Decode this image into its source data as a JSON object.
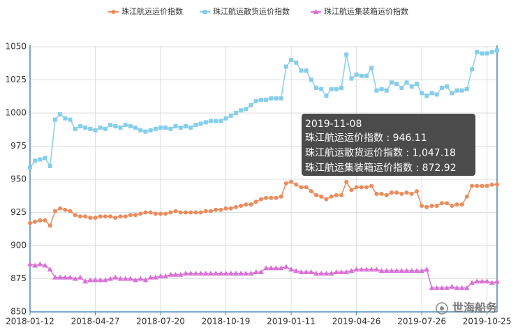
{
  "chart_data": {
    "type": "line",
    "categories": [
      "2018-01-12",
      null,
      null,
      null,
      null,
      null,
      null,
      null,
      null,
      null,
      null,
      null,
      null,
      "2018-04-27",
      null,
      null,
      null,
      null,
      null,
      null,
      null,
      null,
      null,
      null,
      null,
      null,
      "2018-07-20",
      null,
      null,
      null,
      null,
      null,
      null,
      null,
      null,
      null,
      null,
      null,
      null,
      "2018-10-19",
      null,
      null,
      null,
      null,
      null,
      null,
      null,
      null,
      null,
      null,
      null,
      null,
      "2019-01-11",
      null,
      null,
      null,
      null,
      null,
      null,
      null,
      null,
      null,
      null,
      null,
      null,
      "2019-04-26",
      null,
      null,
      null,
      null,
      null,
      null,
      null,
      null,
      null,
      null,
      null,
      null,
      "2019-07-26",
      null,
      null,
      null,
      null,
      null,
      null,
      null,
      null,
      null,
      null,
      null,
      null,
      "2019-10-25",
      null,
      "2019-11-08"
    ],
    "series": [
      {
        "name": "珠江航运运价指数",
        "color": "#ee8a5c",
        "marker": "circle",
        "values": [
          917,
          918,
          919,
          919,
          915,
          926,
          928,
          927,
          926,
          923,
          922,
          922,
          921,
          921,
          922,
          922,
          922,
          921,
          922,
          922,
          923,
          923,
          924,
          925,
          925,
          924,
          924,
          924,
          925,
          926,
          925,
          925,
          925,
          925,
          925,
          926,
          926,
          927,
          927,
          928,
          928,
          929,
          930,
          931,
          931,
          933,
          935,
          936,
          936,
          936,
          937,
          947,
          948,
          946,
          944,
          944,
          941,
          938,
          937,
          935,
          937,
          938,
          938,
          948,
          942,
          944,
          944,
          944,
          945,
          939,
          939,
          938,
          940,
          940,
          939,
          940,
          939,
          941,
          930,
          929,
          930,
          930,
          932,
          932,
          930,
          931,
          931,
          937,
          945,
          945,
          945,
          945,
          946,
          946.11
        ]
      },
      {
        "name": "珠江航运散货运价指数",
        "color": "#87ceeb",
        "marker": "square",
        "values": [
          959,
          964,
          965,
          966,
          960,
          995,
          999,
          996,
          995,
          988,
          990,
          989,
          988,
          987,
          989,
          988,
          991,
          990,
          989,
          991,
          990,
          989,
          987,
          986,
          987,
          988,
          989,
          989,
          988,
          990,
          989,
          990,
          989,
          991,
          992,
          993,
          994,
          994,
          994,
          996,
          998,
          1000,
          1002,
          1003,
          1006,
          1009,
          1010,
          1010,
          1011,
          1011,
          1011,
          1035,
          1040,
          1038,
          1032,
          1032,
          1025,
          1019,
          1018,
          1013,
          1018,
          1018,
          1019,
          1044,
          1026,
          1029,
          1028,
          1028,
          1034,
          1017,
          1018,
          1017,
          1023,
          1022,
          1019,
          1023,
          1020,
          1022,
          1015,
          1013,
          1015,
          1014,
          1019,
          1020,
          1015,
          1017,
          1017,
          1018,
          1033,
          1046,
          1045,
          1045,
          1046,
          1047.18
        ]
      },
      {
        "name": "珠江航运集装箱运价指数",
        "color": "#da70d6",
        "marker": "triangle",
        "values": [
          886,
          885,
          886,
          885,
          882,
          876,
          876,
          876,
          876,
          875,
          876,
          873,
          874,
          874,
          874,
          874,
          875,
          876,
          875,
          875,
          875,
          874,
          875,
          874,
          876,
          876,
          877,
          877,
          878,
          878,
          878,
          879,
          879,
          879,
          879,
          879,
          879,
          879,
          879,
          879,
          879,
          879,
          879,
          879,
          879,
          880,
          880,
          883,
          883,
          883,
          883,
          884,
          882,
          881,
          880,
          880,
          880,
          879,
          879,
          879,
          879,
          880,
          880,
          880,
          881,
          882,
          882,
          882,
          882,
          882,
          881,
          881,
          881,
          881,
          881,
          881,
          881,
          881,
          881,
          882,
          868,
          868,
          868,
          868,
          869,
          868,
          868,
          868,
          872,
          873,
          873,
          873,
          872,
          872.92
        ]
      }
    ],
    "ylim": [
      850,
      1050
    ],
    "yticks": [
      850,
      875,
      900,
      925,
      950,
      975,
      1000,
      1025,
      1050
    ],
    "grid": true,
    "legend": "top",
    "tooltip": {
      "index": 93,
      "lines": [
        "珠江航运运价指数 : 946.11",
        "珠江航运散货运价指数 : 1,047.18",
        "珠江航运集装箱运价指数 : 872.92"
      ]
    },
    "watermark": "世海船务"
  }
}
